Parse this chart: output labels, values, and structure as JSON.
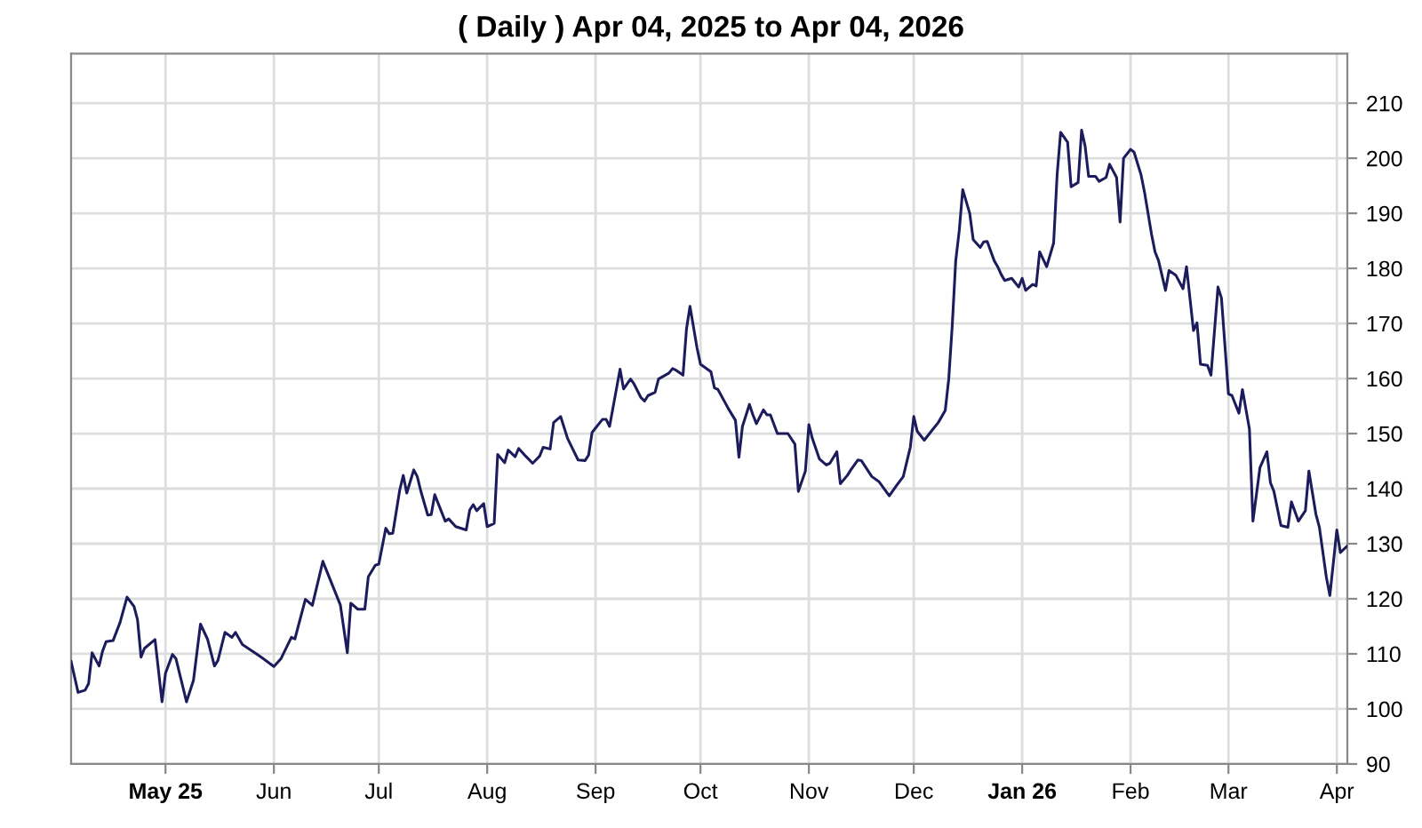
{
  "chart_data": {
    "type": "line",
    "title": "( Daily ) Apr 04, 2025 to Apr 04, 2026",
    "x": [
      "2025-04-04",
      "2025-04-06",
      "2025-04-08",
      "2025-04-09",
      "2025-04-10",
      "2025-04-12",
      "2025-04-13",
      "2025-04-14",
      "2025-04-16",
      "2025-04-18",
      "2025-04-20",
      "2025-04-22",
      "2025-04-23",
      "2025-04-24",
      "2025-04-25",
      "2025-04-28",
      "2025-04-30",
      "2025-05-01",
      "2025-05-03",
      "2025-05-04",
      "2025-05-07",
      "2025-05-09",
      "2025-05-11",
      "2025-05-13",
      "2025-05-15",
      "2025-05-16",
      "2025-05-18",
      "2025-05-20",
      "2025-05-21",
      "2025-05-23",
      "2025-05-27",
      "2025-05-29",
      "2025-06-01",
      "2025-06-03",
      "2025-06-06",
      "2025-06-07",
      "2025-06-10",
      "2025-06-12",
      "2025-06-15",
      "2025-06-20",
      "2025-06-22",
      "2025-06-23",
      "2025-06-25",
      "2025-06-27",
      "2025-06-28",
      "2025-06-30",
      "2025-07-01",
      "2025-07-03",
      "2025-07-04",
      "2025-07-05",
      "2025-07-07",
      "2025-07-08",
      "2025-07-09",
      "2025-07-11",
      "2025-07-12",
      "2025-07-13",
      "2025-07-15",
      "2025-07-16",
      "2025-07-17",
      "2025-07-20",
      "2025-07-21",
      "2025-07-23",
      "2025-07-26",
      "2025-07-27",
      "2025-07-28",
      "2025-07-29",
      "2025-07-31",
      "2025-08-01",
      "2025-08-03",
      "2025-08-04",
      "2025-08-06",
      "2025-08-07",
      "2025-08-09",
      "2025-08-10",
      "2025-08-12",
      "2025-08-14",
      "2025-08-16",
      "2025-08-17",
      "2025-08-19",
      "2025-08-20",
      "2025-08-22",
      "2025-08-24",
      "2025-08-27",
      "2025-08-29",
      "2025-08-30",
      "2025-08-31",
      "2025-09-03",
      "2025-09-04",
      "2025-09-05",
      "2025-09-08",
      "2025-09-09",
      "2025-09-11",
      "2025-09-12",
      "2025-09-14",
      "2025-09-15",
      "2025-09-16",
      "2025-09-18",
      "2025-09-19",
      "2025-09-22",
      "2025-09-23",
      "2025-09-24",
      "2025-09-26",
      "2025-09-27",
      "2025-09-28",
      "2025-09-30",
      "2025-10-01",
      "2025-10-04",
      "2025-10-05",
      "2025-10-06",
      "2025-10-09",
      "2025-10-11",
      "2025-10-12",
      "2025-10-13",
      "2025-10-15",
      "2025-10-16",
      "2025-10-17",
      "2025-10-19",
      "2025-10-20",
      "2025-10-21",
      "2025-10-23",
      "2025-10-26",
      "2025-10-28",
      "2025-10-29",
      "2025-10-31",
      "2025-11-01",
      "2025-11-02",
      "2025-11-04",
      "2025-11-06",
      "2025-11-07",
      "2025-11-09",
      "2025-11-10",
      "2025-11-12",
      "2025-11-13",
      "2025-11-15",
      "2025-11-16",
      "2025-11-19",
      "2025-11-21",
      "2025-11-24",
      "2025-11-26",
      "2025-11-28",
      "2025-11-30",
      "2025-12-01",
      "2025-12-02",
      "2025-12-04",
      "2025-12-06",
      "2025-12-08",
      "2025-12-10",
      "2025-12-11",
      "2025-12-12",
      "2025-12-13",
      "2025-12-14",
      "2025-12-15",
      "2025-12-17",
      "2025-12-18",
      "2025-12-20",
      "2025-12-21",
      "2025-12-22",
      "2025-12-24",
      "2025-12-25",
      "2025-12-26",
      "2025-12-27",
      "2025-12-29",
      "2025-12-31",
      "2026-01-01",
      "2026-01-02",
      "2026-01-04",
      "2026-01-05",
      "2026-01-06",
      "2026-01-08",
      "2026-01-10",
      "2026-01-11",
      "2026-01-12",
      "2026-01-14",
      "2026-01-15",
      "2026-01-17",
      "2026-01-18",
      "2026-01-19",
      "2026-01-20",
      "2026-01-22",
      "2026-01-23",
      "2026-01-25",
      "2026-01-26",
      "2026-01-28",
      "2026-01-29",
      "2026-01-30",
      "2026-02-01",
      "2026-02-02",
      "2026-02-04",
      "2026-02-05",
      "2026-02-07",
      "2026-02-08",
      "2026-02-09",
      "2026-02-11",
      "2026-02-12",
      "2026-02-14",
      "2026-02-16",
      "2026-02-17",
      "2026-02-19",
      "2026-02-20",
      "2026-02-21",
      "2026-02-23",
      "2026-02-24",
      "2026-02-26",
      "2026-02-27",
      "2026-03-01",
      "2026-03-02",
      "2026-03-04",
      "2026-03-05",
      "2026-03-07",
      "2026-03-08",
      "2026-03-10",
      "2026-03-12",
      "2026-03-13",
      "2026-03-14",
      "2026-03-16",
      "2026-03-18",
      "2026-03-19",
      "2026-03-21",
      "2026-03-23",
      "2026-03-24",
      "2026-03-26",
      "2026-03-27",
      "2026-03-29",
      "2026-03-30",
      "2026-04-01",
      "2026-04-02",
      "2026-04-04"
    ],
    "series": [
      {
        "color": "#1c1c5c",
        "values": [
          108.6,
          103.0,
          103.4,
          104.6,
          110.2,
          107.8,
          110.5,
          112.2,
          112.4,
          115.7,
          120.3,
          118.6,
          116.2,
          109.4,
          111.0,
          112.6,
          101.3,
          106.5,
          109.9,
          109.1,
          101.3,
          105.2,
          115.4,
          112.7,
          107.8,
          108.8,
          113.9,
          113.0,
          113.9,
          111.7,
          110.0,
          109.1,
          107.7,
          109.1,
          113.0,
          112.7,
          119.9,
          118.8,
          126.8,
          118.9,
          110.2,
          119.2,
          118.1,
          118.1,
          124.0,
          126.1,
          126.3,
          132.8,
          131.8,
          131.9,
          139.8,
          142.4,
          139.2,
          143.4,
          142.2,
          139.6,
          135.2,
          135.3,
          138.9,
          134.1,
          134.5,
          133.1,
          132.5,
          136.1,
          137.1,
          136.0,
          137.3,
          133.1,
          133.7,
          146.2,
          144.7,
          147.0,
          145.8,
          147.3,
          145.9,
          144.6,
          145.9,
          147.5,
          147.2,
          152.0,
          153.1,
          149.1,
          145.2,
          145.1,
          146.1,
          150.2,
          152.6,
          152.6,
          151.3,
          161.7,
          158.1,
          159.9,
          159.0,
          156.5,
          155.9,
          156.9,
          157.5,
          159.9,
          161.0,
          161.8,
          161.5,
          160.6,
          169.0,
          173.1,
          165.6,
          162.6,
          161.2,
          158.3,
          158.0,
          154.5,
          152.4,
          145.7,
          151.3,
          155.3,
          153.4,
          151.8,
          154.3,
          153.4,
          153.4,
          150.0,
          150.0,
          148.1,
          139.5,
          143.2,
          151.6,
          149.1,
          145.4,
          144.3,
          144.6,
          146.7,
          140.9,
          142.4,
          143.4,
          145.2,
          145.1,
          142.2,
          141.3,
          138.7,
          140.5,
          142.2,
          147.5,
          153.1,
          150.4,
          148.8,
          150.4,
          152.0,
          154.2,
          159.9,
          169.6,
          181.4,
          186.8,
          194.3,
          190.0,
          185.2,
          183.8,
          184.8,
          184.9,
          181.4,
          180.3,
          178.9,
          177.8,
          178.2,
          176.6,
          178.2,
          176.0,
          177.1,
          176.8,
          183.0,
          180.3,
          184.6,
          197.0,
          204.7,
          202.9,
          194.8,
          195.6,
          205.1,
          202.2,
          196.7,
          196.7,
          195.8,
          196.5,
          198.9,
          196.5,
          188.4,
          200.0,
          201.6,
          201.1,
          197.0,
          193.8,
          186.2,
          183.0,
          181.4,
          176.0,
          179.6,
          178.7,
          176.3,
          180.3,
          168.7,
          170.1,
          162.6,
          162.4,
          160.6,
          176.6,
          174.6,
          157.2,
          156.9,
          153.7,
          158.0,
          150.8,
          134.1,
          143.8,
          146.7,
          141.1,
          139.5,
          133.3,
          133.0,
          137.6,
          134.1,
          136.0,
          143.2,
          135.4,
          133.0,
          123.9,
          120.6,
          132.5,
          128.4,
          129.6
        ]
      }
    ],
    "xlim": [
      "2025-04-04",
      "2026-04-04"
    ],
    "xticks": [
      {
        "value": "2025-05-01",
        "label": "May 25"
      },
      {
        "value": "2025-06-01",
        "label": "Jun"
      },
      {
        "value": "2025-07-01",
        "label": "Jul"
      },
      {
        "value": "2025-08-01",
        "label": "Aug"
      },
      {
        "value": "2025-09-01",
        "label": "Sep"
      },
      {
        "value": "2025-10-01",
        "label": "Oct"
      },
      {
        "value": "2025-11-01",
        "label": "Nov"
      },
      {
        "value": "2025-12-01",
        "label": "Dec"
      },
      {
        "value": "2026-01-01",
        "label": "Jan 26"
      },
      {
        "value": "2026-02-01",
        "label": "Feb"
      },
      {
        "value": "2026-03-01",
        "label": "Mar"
      },
      {
        "value": "2026-04-01",
        "label": "Apr"
      }
    ],
    "ylim": [
      90,
      219
    ],
    "yticks": [
      90,
      100,
      110,
      120,
      130,
      140,
      150,
      160,
      170,
      180,
      190,
      200,
      210
    ],
    "grid": true
  }
}
